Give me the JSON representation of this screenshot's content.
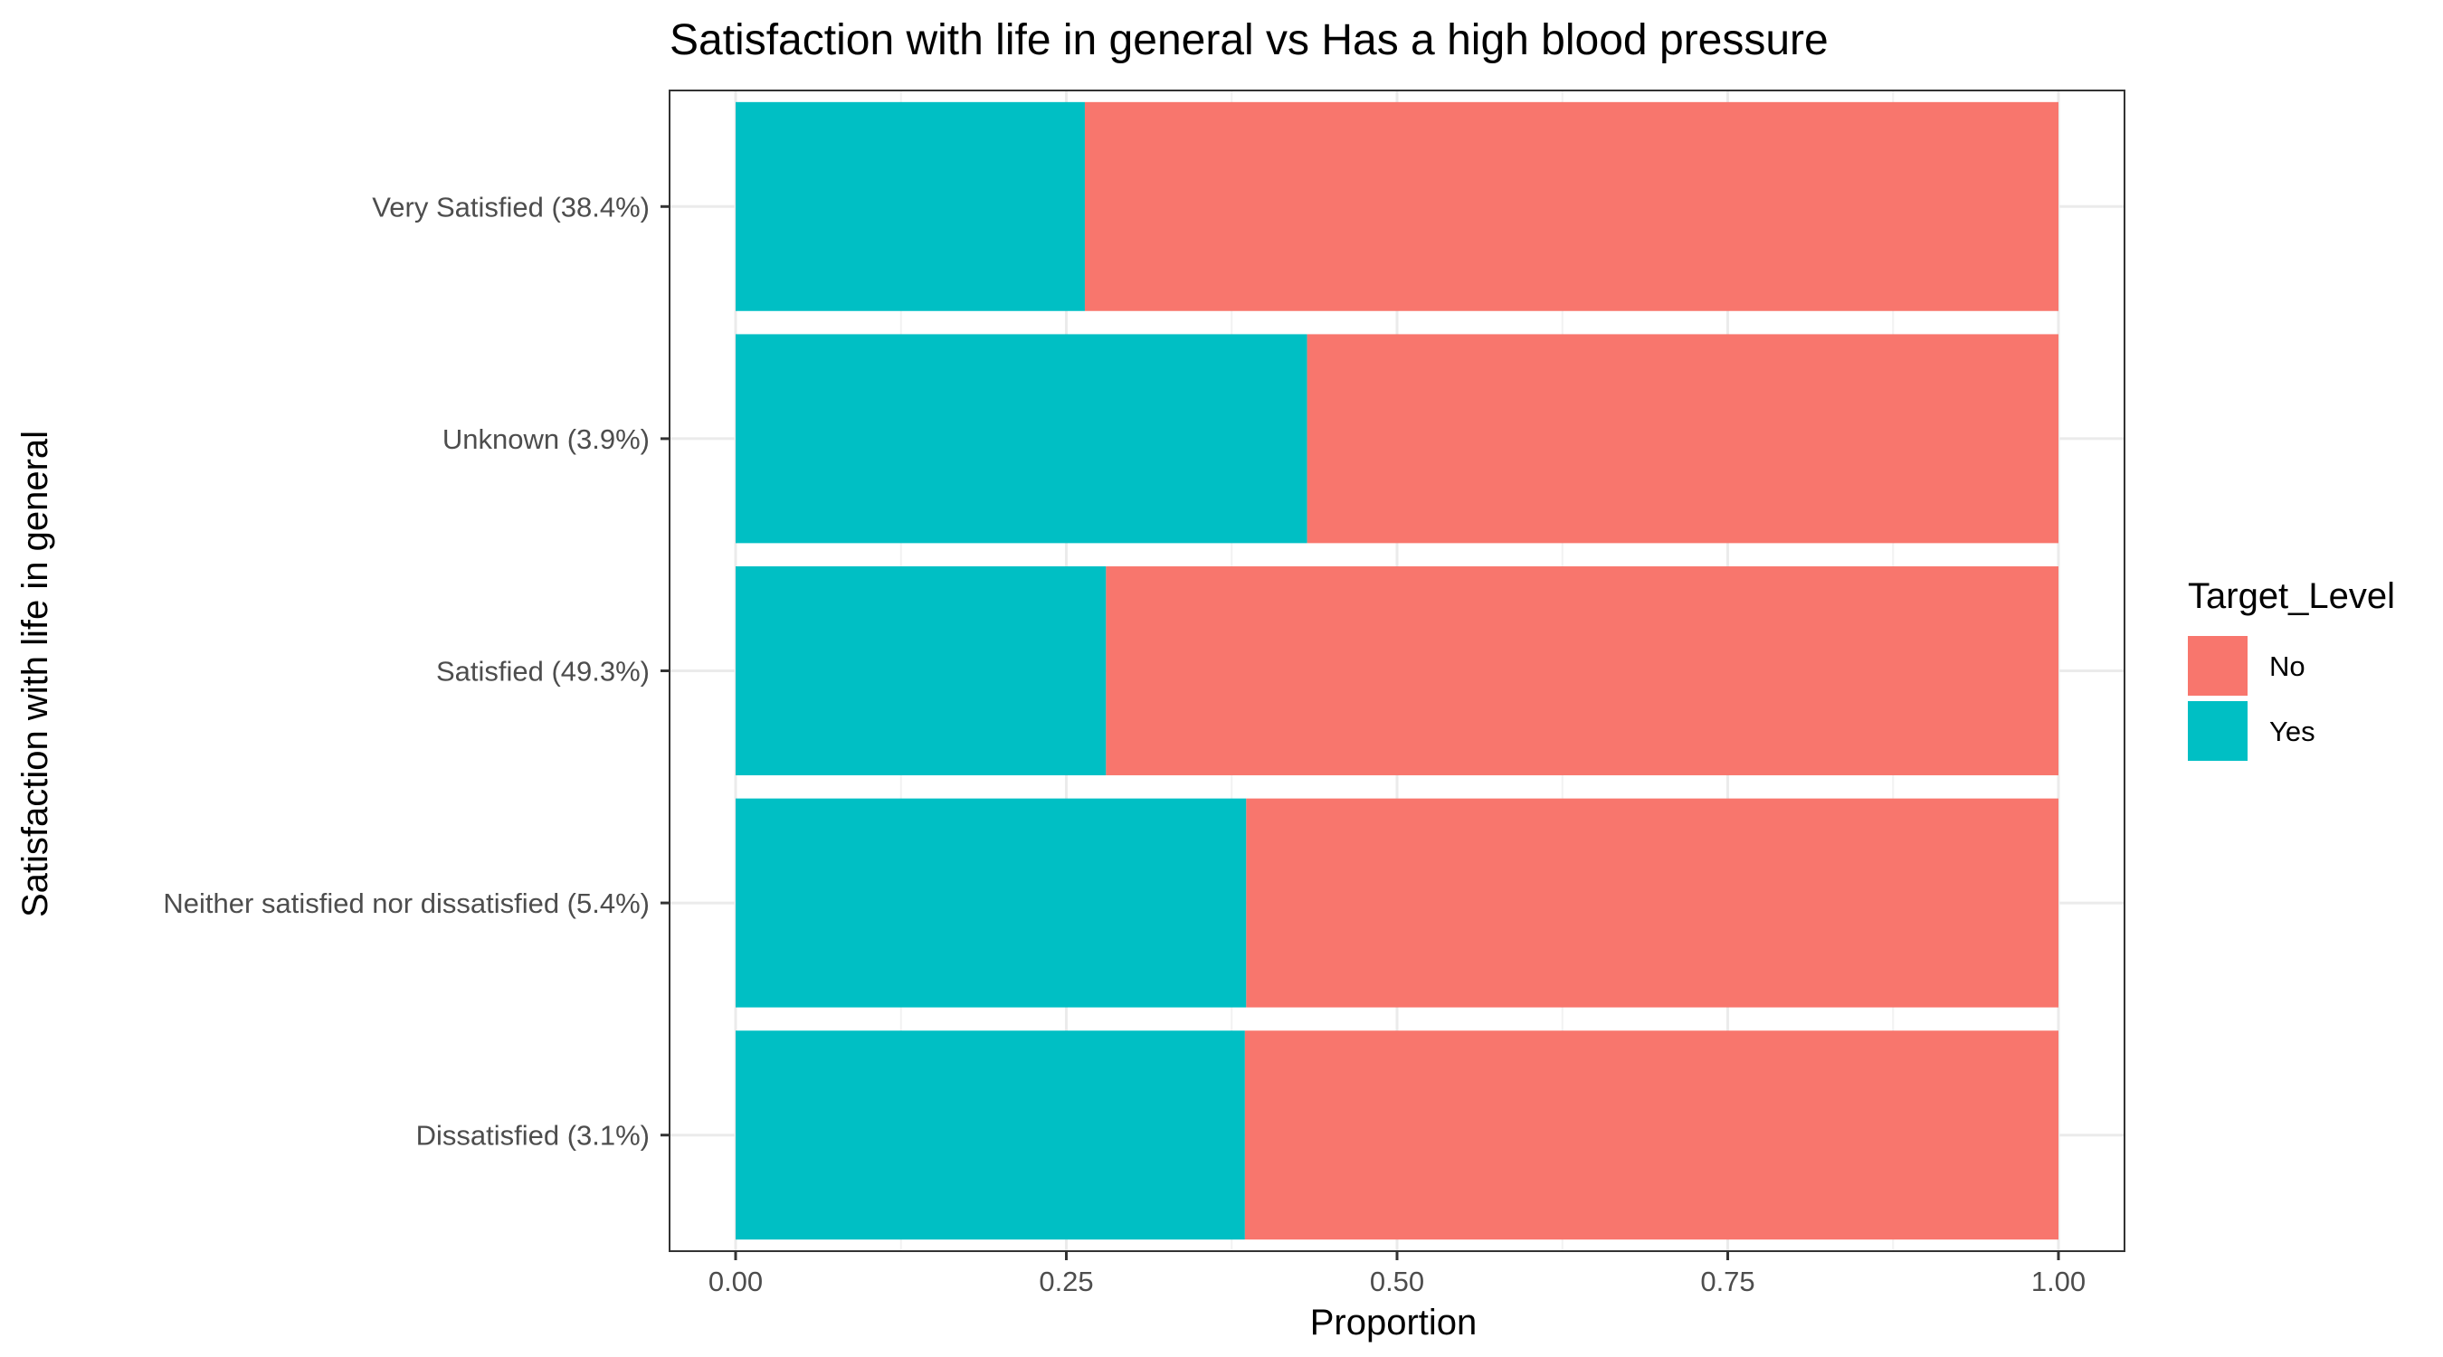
{
  "chart_data": {
    "type": "bar",
    "orientation": "horizontal",
    "stacked": true,
    "title": "Satisfaction with life in general  vs Has a high blood pressure",
    "xlabel": "Proportion",
    "ylabel": "Satisfaction with life in general",
    "xlim": [
      0,
      1
    ],
    "x_ticks": [
      "0.00",
      "0.25",
      "0.50",
      "0.75",
      "1.00"
    ],
    "x_tick_values": [
      0,
      0.25,
      0.5,
      0.75,
      1.0
    ],
    "grid": true,
    "categories": [
      "Very Satisfied (38.4%)",
      "Unknown (3.9%)",
      "Satisfied (49.3%)",
      "Neither satisfied nor dissatisfied (5.4%)",
      "Dissatisfied (3.1%)"
    ],
    "series": [
      {
        "name": "Yes",
        "color": "#00BFC4",
        "values": [
          0.264,
          0.432,
          0.28,
          0.386,
          0.385
        ]
      },
      {
        "name": "No",
        "color": "#F8766D",
        "values": [
          0.736,
          0.568,
          0.72,
          0.614,
          0.615
        ]
      }
    ],
    "legend": {
      "title": "Target_Level",
      "position": "right",
      "entries": [
        {
          "label": "No",
          "color": "#F8766D"
        },
        {
          "label": "Yes",
          "color": "#00BFC4"
        }
      ]
    }
  }
}
